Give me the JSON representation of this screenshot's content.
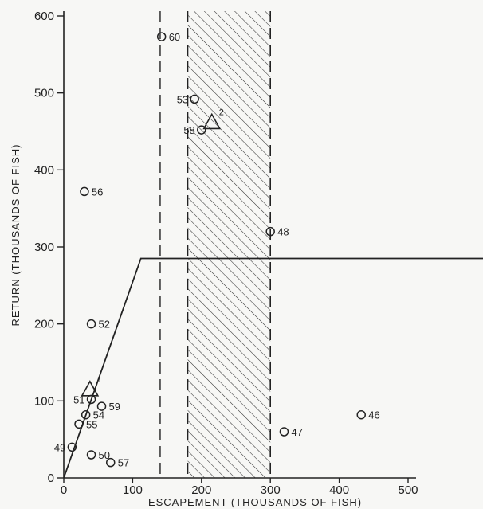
{
  "chart_data": {
    "type": "scatter",
    "xlabel": "ESCAPEMENT (THOUSANDS OF FISH)",
    "ylabel": "RETURN (THOUSANDS OF FISH)",
    "xlim": [
      0,
      500
    ],
    "ylim": [
      0,
      600
    ],
    "x_ticks": [
      "0",
      "100",
      "200",
      "300",
      "400",
      "500"
    ],
    "y_ticks": [
      "0",
      "100",
      "200",
      "300",
      "400",
      "500",
      "600"
    ],
    "grid": false,
    "points": [
      {
        "label": "46",
        "x": 432,
        "y": 82
      },
      {
        "label": "47",
        "x": 320,
        "y": 60
      },
      {
        "label": "48",
        "x": 300,
        "y": 320
      },
      {
        "label": "49",
        "x": 12,
        "y": 40
      },
      {
        "label": "50",
        "x": 40,
        "y": 30
      },
      {
        "label": "51",
        "x": 40,
        "y": 102
      },
      {
        "label": "52",
        "x": 40,
        "y": 200
      },
      {
        "label": "53",
        "x": 190,
        "y": 492
      },
      {
        "label": "54",
        "x": 32,
        "y": 82
      },
      {
        "label": "55",
        "x": 22,
        "y": 70
      },
      {
        "label": "56",
        "x": 30,
        "y": 372
      },
      {
        "label": "57",
        "x": 68,
        "y": 20
      },
      {
        "label": "58",
        "x": 200,
        "y": 452
      },
      {
        "label": "59",
        "x": 55,
        "y": 93
      },
      {
        "label": "60",
        "x": 142,
        "y": 573
      }
    ],
    "triangles": [
      {
        "label": "1",
        "x": 38,
        "y": 115
      },
      {
        "label": "2",
        "x": 215,
        "y": 462
      }
    ],
    "line": {
      "x": [
        0,
        112,
        500
      ],
      "y": [
        0,
        285,
        285
      ]
    },
    "dashed_vline_x": 140,
    "hatched_band": [
      180,
      300
    ]
  }
}
